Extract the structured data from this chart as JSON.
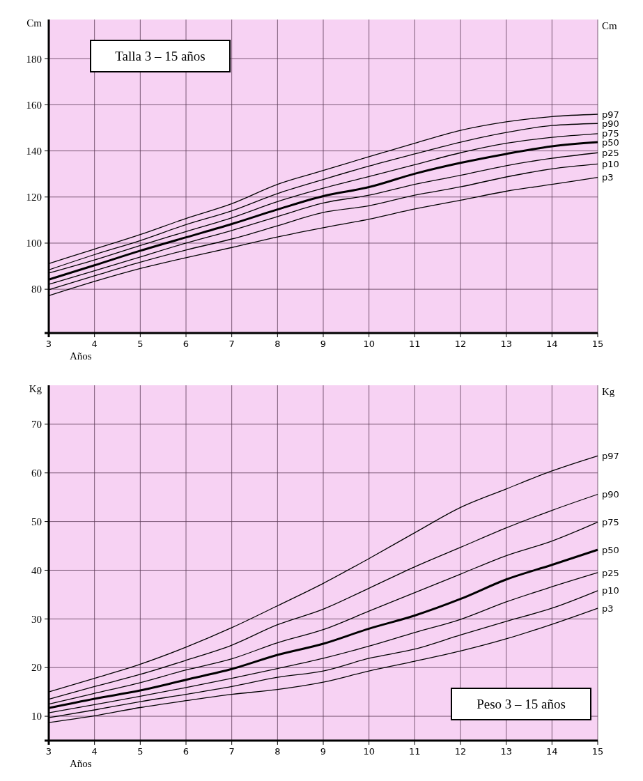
{
  "chart_data": [
    {
      "type": "line",
      "title": "Talla  3 – 15 años",
      "xlabel": "Años",
      "ylabel": "Cm",
      "annotations": [
        "Cm"
      ],
      "x": [
        3,
        4,
        5,
        6,
        7,
        8,
        9,
        10,
        11,
        12,
        13,
        14,
        15
      ],
      "xlim": [
        3,
        15
      ],
      "xticks": [
        3,
        4,
        5,
        6,
        7,
        8,
        9,
        10,
        11,
        12,
        13,
        14,
        15
      ],
      "ylim": [
        61,
        197
      ],
      "yticks": [
        80,
        100,
        120,
        140,
        160,
        180
      ],
      "grid": true,
      "series": [
        {
          "name": "p97",
          "color": "#000000",
          "values": [
            91.1,
            97.4,
            103.7,
            110.7,
            117.1,
            125.5,
            131.5,
            137.5,
            143.3,
            148.9,
            152.6,
            154.9,
            155.9
          ]
        },
        {
          "name": "p90",
          "color": "#000000",
          "values": [
            88.4,
            95,
            101.1,
            108,
            114,
            121.5,
            127.6,
            133.4,
            138.7,
            143.8,
            148,
            151,
            151.9
          ]
        },
        {
          "name": "p75",
          "color": "#000000",
          "values": [
            87,
            92.7,
            99,
            105,
            111,
            118,
            123.8,
            128.9,
            134,
            139.2,
            143.3,
            145.9,
            147.5
          ]
        },
        {
          "name": "p50",
          "color": "#000000",
          "values": [
            84.2,
            90.4,
            96.7,
            102.5,
            108.3,
            114.6,
            120.4,
            124.3,
            130.1,
            134.8,
            138.7,
            142,
            143.8
          ]
        },
        {
          "name": "p25",
          "color": "#000000",
          "values": [
            82.1,
            88,
            94,
            100,
            105.5,
            111.5,
            117.4,
            120.8,
            125.5,
            129.4,
            133.6,
            136.8,
            139.2
          ]
        },
        {
          "name": "p10",
          "color": "#000000",
          "values": [
            79.8,
            85.8,
            91.7,
            97,
            101.8,
            107.5,
            113.3,
            116.2,
            120.8,
            124.4,
            128.7,
            132.2,
            134.3
          ]
        },
        {
          "name": "p3",
          "color": "#000000",
          "values": [
            77.2,
            83.4,
            89,
            93.7,
            98.1,
            102.7,
            106.7,
            110.4,
            114.8,
            118.6,
            122.5,
            125.5,
            128.5
          ]
        }
      ]
    },
    {
      "type": "line",
      "title": "Peso 3 – 15 años",
      "xlabel": "Años",
      "ylabel": "Kg",
      "annotations": [
        "Kg"
      ],
      "x": [
        3,
        4,
        5,
        6,
        7,
        8,
        9,
        10,
        11,
        12,
        13,
        14,
        15
      ],
      "xlim": [
        3,
        15
      ],
      "xticks": [
        3,
        4,
        5,
        6,
        7,
        8,
        9,
        10,
        11,
        12,
        13,
        14,
        15
      ],
      "ylim": [
        5,
        78
      ],
      "yticks": [
        10,
        20,
        30,
        40,
        50,
        60,
        70
      ],
      "grid": true,
      "series": [
        {
          "name": "p97",
          "color": "#000000",
          "values": [
            15,
            17.8,
            20.7,
            24.2,
            28.2,
            32.7,
            37.3,
            42.4,
            47.7,
            52.9,
            56.7,
            60.4,
            63.5
          ]
        },
        {
          "name": "p90",
          "color": "#000000",
          "values": [
            13.5,
            16.1,
            18.6,
            21.5,
            24.6,
            28.8,
            32,
            36.3,
            40.7,
            44.7,
            48.7,
            52.3,
            55.6
          ]
        },
        {
          "name": "p75",
          "color": "#000000",
          "values": [
            12.5,
            14.7,
            16.9,
            19.5,
            21.8,
            25.1,
            27.8,
            31.6,
            35.4,
            39.2,
            43,
            46,
            49.9
          ]
        },
        {
          "name": "p50",
          "color": "#000000",
          "values": [
            11.7,
            13.6,
            15.3,
            17.5,
            19.7,
            22.6,
            24.9,
            28,
            30.7,
            34.1,
            38.1,
            41.1,
            44.2
          ]
        },
        {
          "name": "p25",
          "color": "#000000",
          "values": [
            10.7,
            12.4,
            14.1,
            15.9,
            17.8,
            19.8,
            21.9,
            24.4,
            27.2,
            29.9,
            33.5,
            36.6,
            39.5
          ]
        },
        {
          "name": "p10",
          "color": "#000000",
          "values": [
            9.7,
            11.3,
            13,
            14.5,
            16.1,
            18,
            19.3,
            21.9,
            23.8,
            26.7,
            29.5,
            32.2,
            35.8
          ]
        },
        {
          "name": "p3",
          "color": "#000000",
          "values": [
            8.7,
            10.1,
            11.8,
            13.2,
            14.5,
            15.5,
            17,
            19.3,
            21.3,
            23.4,
            25.9,
            28.9,
            32.2
          ]
        }
      ]
    }
  ]
}
